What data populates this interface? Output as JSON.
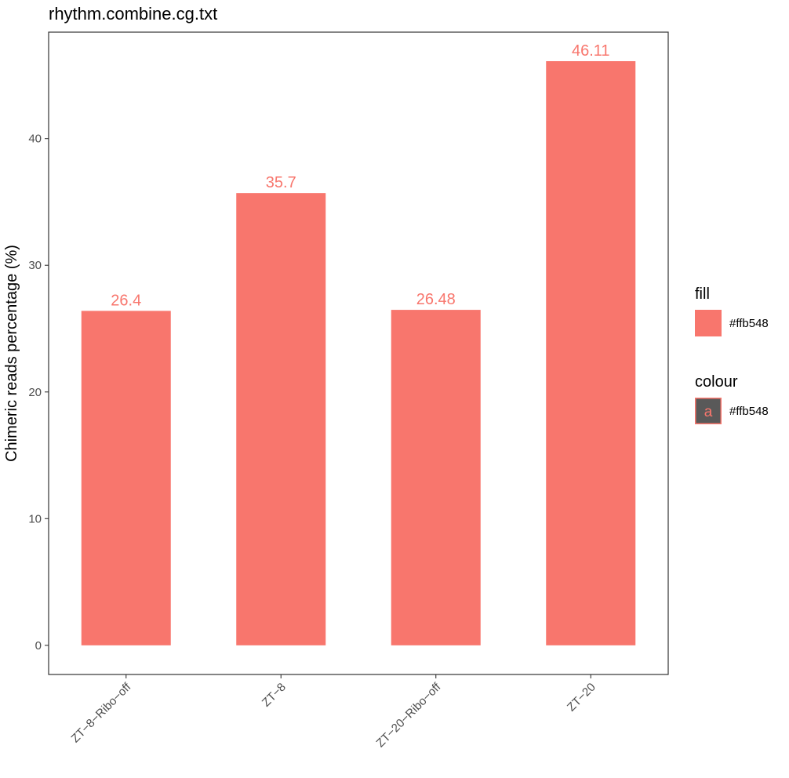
{
  "chart_data": {
    "type": "bar",
    "title": "rhythm.combine.cg.txt",
    "xlabel": "",
    "ylabel": "Chimeric reads percentage (%)",
    "categories": [
      "ZT−8−Ribo−off",
      "ZT−8",
      "ZT−20−Ribo−off",
      "ZT−20"
    ],
    "values": [
      26.4,
      35.7,
      26.48,
      46.11
    ],
    "data_labels": [
      "26.4",
      "35.7",
      "26.48",
      "46.11"
    ],
    "ylim": [
      -2.3,
      48.4
    ],
    "yticks": [
      0,
      10,
      20,
      30,
      40
    ],
    "ytick_labels": [
      "0",
      "10",
      "20",
      "30",
      "40"
    ],
    "grid": false,
    "bar_color": "#F8766D",
    "label_color": "#F8766D",
    "legend_position": "right",
    "legends": [
      {
        "title": "fill",
        "label": "#ffb548",
        "key": "filled-square",
        "color": "#F8766D"
      },
      {
        "title": "colour",
        "label": "#ffb548",
        "key": "letter",
        "key_text": "a",
        "color": "#F8766D",
        "key_background": "#595959"
      }
    ]
  }
}
